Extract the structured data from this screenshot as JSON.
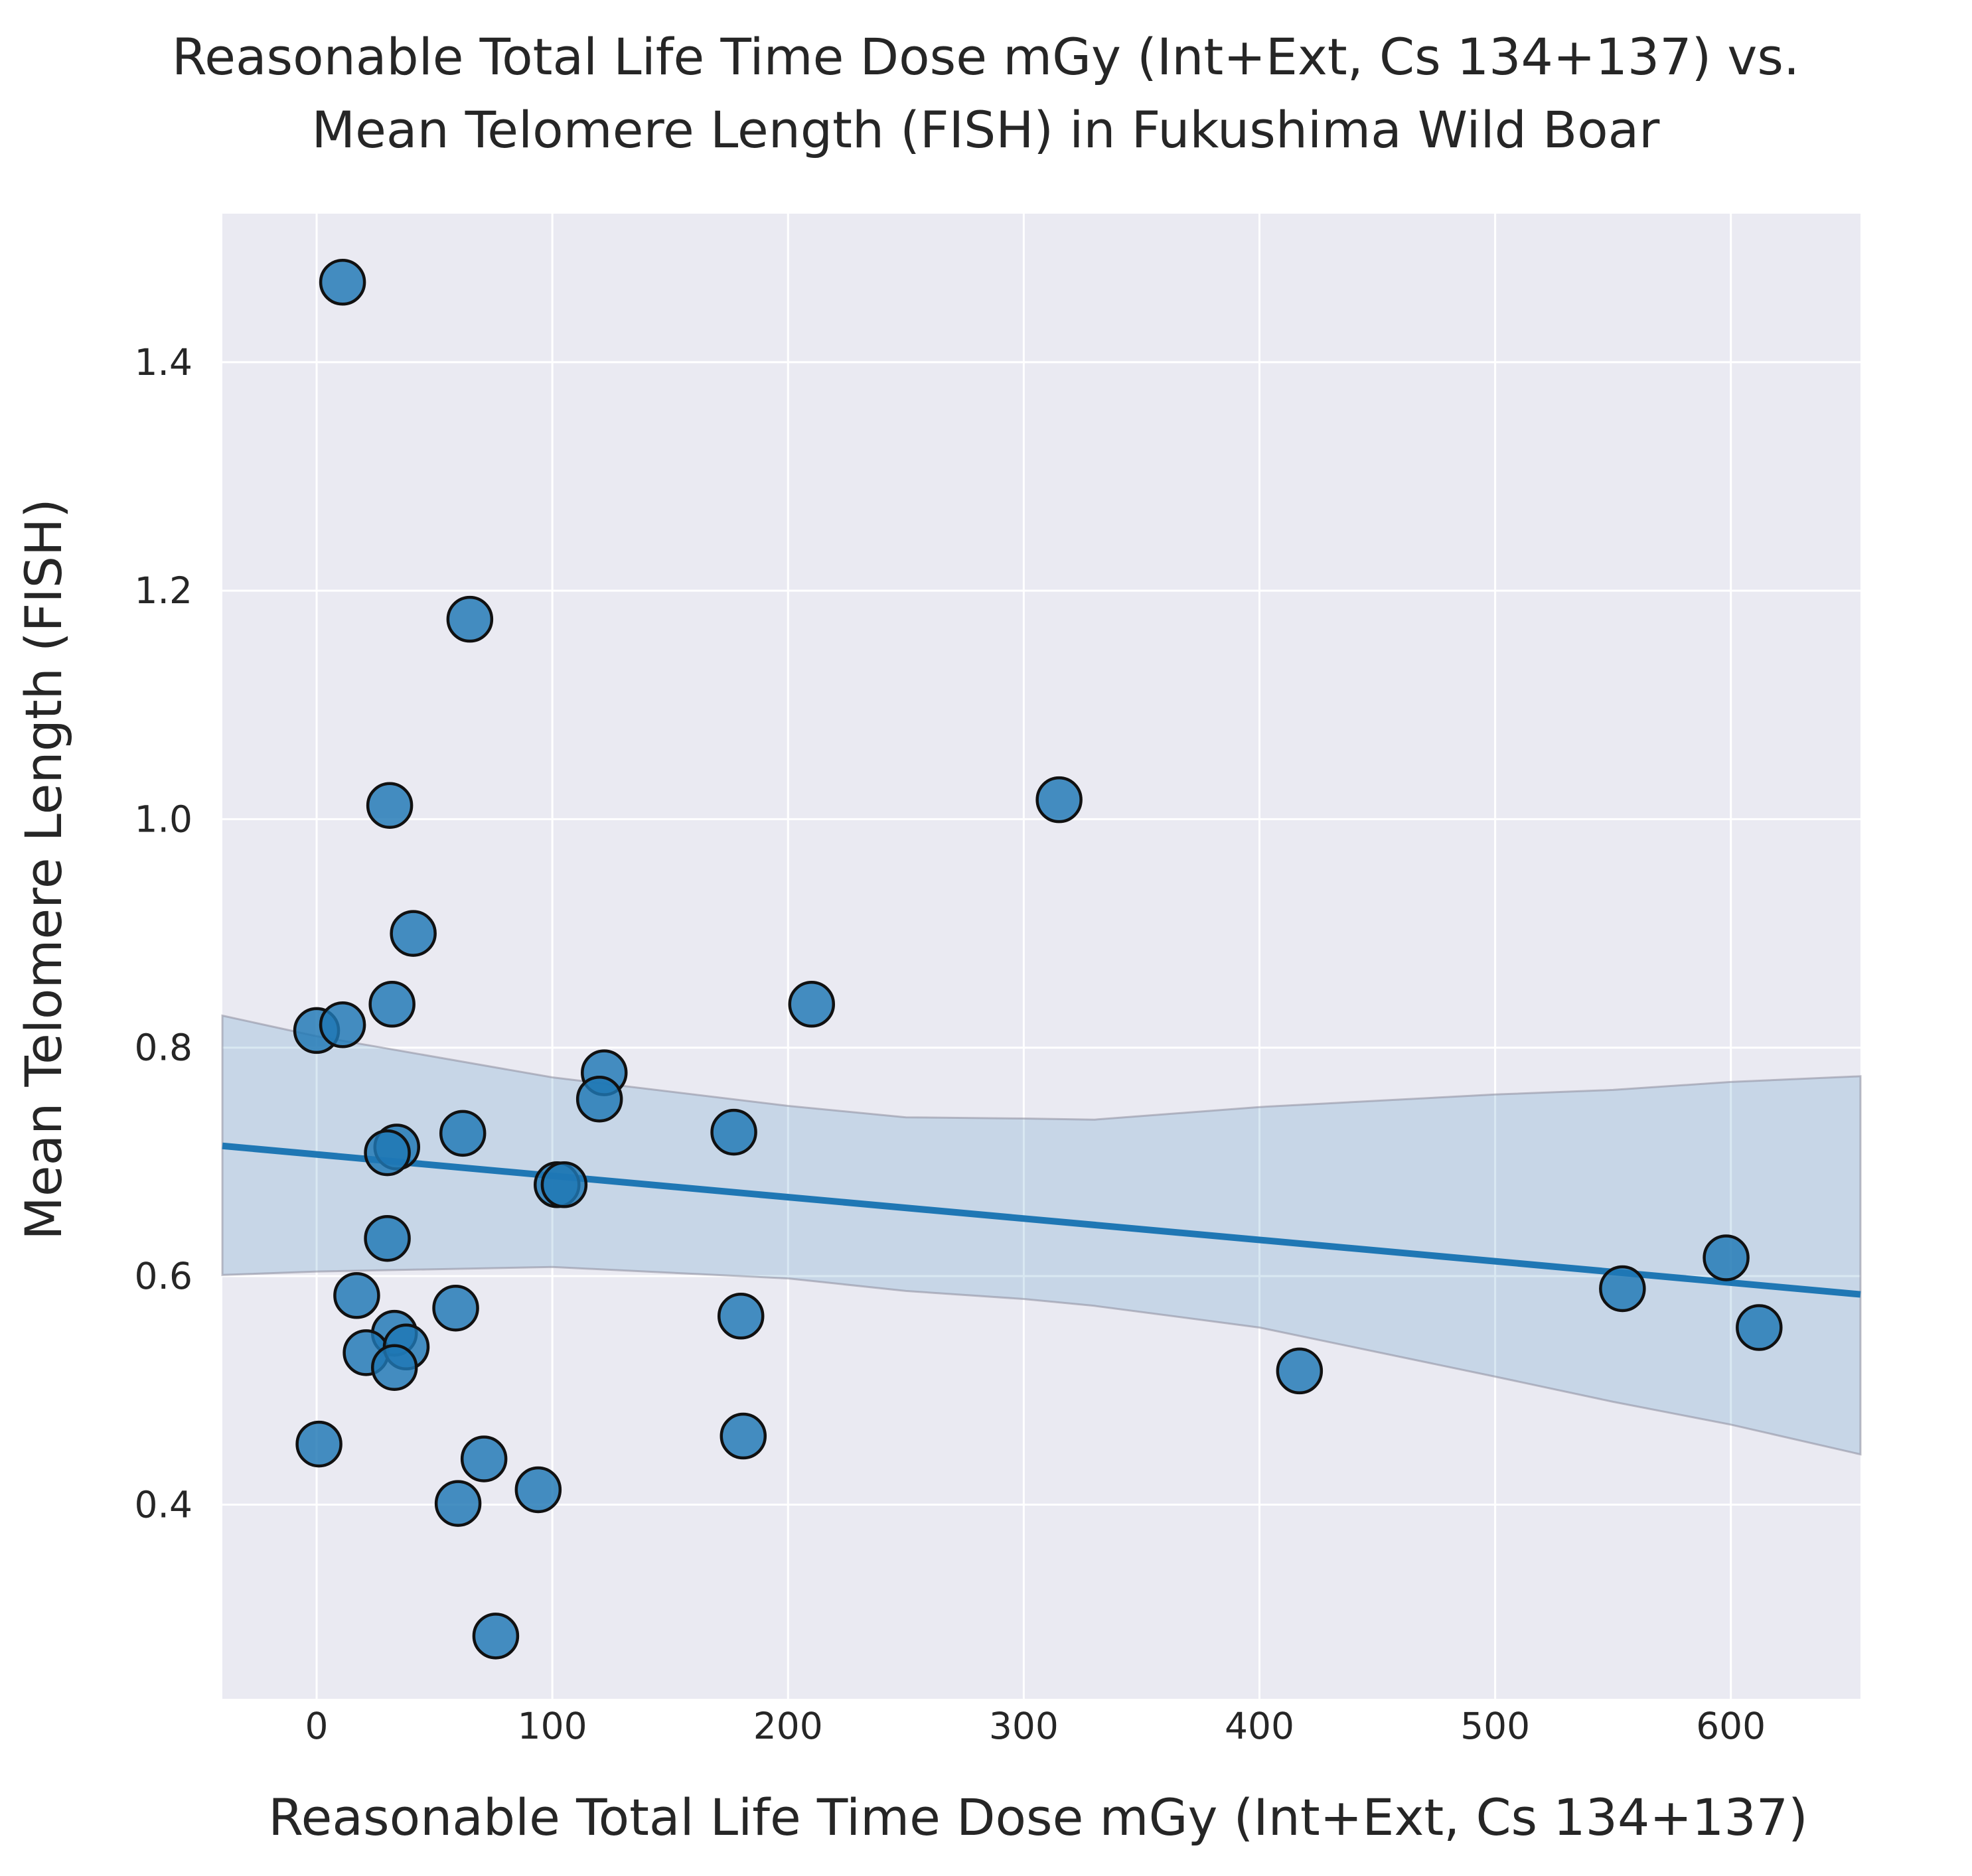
{
  "chart_data": {
    "type": "scatter",
    "title": [
      "Reasonable Total Life Time Dose mGy (Int+Ext, Cs 134+137) vs.",
      "Mean Telomere Length (FISH) in Fukushima Wild Boar"
    ],
    "xlabel": "Reasonable Total Life Time Dose mGy (Int+Ext, Cs 134+137)",
    "ylabel": "Mean Telomere Length (FISH)",
    "xlim": [
      -40,
      655
    ],
    "ylim": [
      0.23,
      1.53
    ],
    "xticks": [
      0,
      100,
      200,
      300,
      400,
      500,
      600
    ],
    "xtick_labels": [
      "0",
      "100",
      "200",
      "300",
      "400",
      "500",
      "600"
    ],
    "yticks": [
      0.4,
      0.6,
      0.8,
      1.0,
      1.2,
      1.4
    ],
    "ytick_labels": [
      "0.4",
      "0.6",
      "0.8",
      "1.0",
      "1.2",
      "1.4"
    ],
    "grid": true,
    "colors": {
      "background": "#eaeaf2",
      "grid": "#ffffff",
      "points": "#1f77b4",
      "point_edge": "#111111",
      "regression": "#1f77b4",
      "band": "#1f77b4"
    },
    "points": [
      {
        "x": 11,
        "y": 1.47
      },
      {
        "x": 65,
        "y": 1.175
      },
      {
        "x": 31,
        "y": 1.012
      },
      {
        "x": 315,
        "y": 1.017
      },
      {
        "x": 41,
        "y": 0.9
      },
      {
        "x": 32,
        "y": 0.838
      },
      {
        "x": 210,
        "y": 0.838
      },
      {
        "x": 0,
        "y": 0.815
      },
      {
        "x": 11,
        "y": 0.82
      },
      {
        "x": 122,
        "y": 0.778
      },
      {
        "x": 120,
        "y": 0.755
      },
      {
        "x": 62,
        "y": 0.725
      },
      {
        "x": 177,
        "y": 0.726
      },
      {
        "x": 34,
        "y": 0.713
      },
      {
        "x": 30,
        "y": 0.708
      },
      {
        "x": 102,
        "y": 0.68
      },
      {
        "x": 105,
        "y": 0.68
      },
      {
        "x": 30,
        "y": 0.633
      },
      {
        "x": 598,
        "y": 0.616
      },
      {
        "x": 554,
        "y": 0.589
      },
      {
        "x": 17,
        "y": 0.583
      },
      {
        "x": 59,
        "y": 0.572
      },
      {
        "x": 180,
        "y": 0.565
      },
      {
        "x": 612,
        "y": 0.555
      },
      {
        "x": 33,
        "y": 0.55
      },
      {
        "x": 21,
        "y": 0.533
      },
      {
        "x": 38,
        "y": 0.538
      },
      {
        "x": 33,
        "y": 0.52
      },
      {
        "x": 417,
        "y": 0.517
      },
      {
        "x": 181,
        "y": 0.46
      },
      {
        "x": 1,
        "y": 0.453
      },
      {
        "x": 71,
        "y": 0.44
      },
      {
        "x": 94,
        "y": 0.413
      },
      {
        "x": 60,
        "y": 0.401
      },
      {
        "x": 76,
        "y": 0.285
      }
    ],
    "regression": {
      "x": [
        -40,
        655
      ],
      "y": [
        0.714,
        0.584
      ]
    },
    "confidence_band": {
      "x": [
        -40,
        0,
        100,
        200,
        250,
        300,
        330,
        400,
        500,
        550,
        600,
        655
      ],
      "upper": [
        0.828,
        0.81,
        0.774,
        0.749,
        0.739,
        0.738,
        0.737,
        0.748,
        0.759,
        0.763,
        0.77,
        0.775
      ],
      "lower": [
        0.601,
        0.604,
        0.608,
        0.598,
        0.587,
        0.58,
        0.574,
        0.555,
        0.512,
        0.49,
        0.47,
        0.444
      ]
    }
  }
}
